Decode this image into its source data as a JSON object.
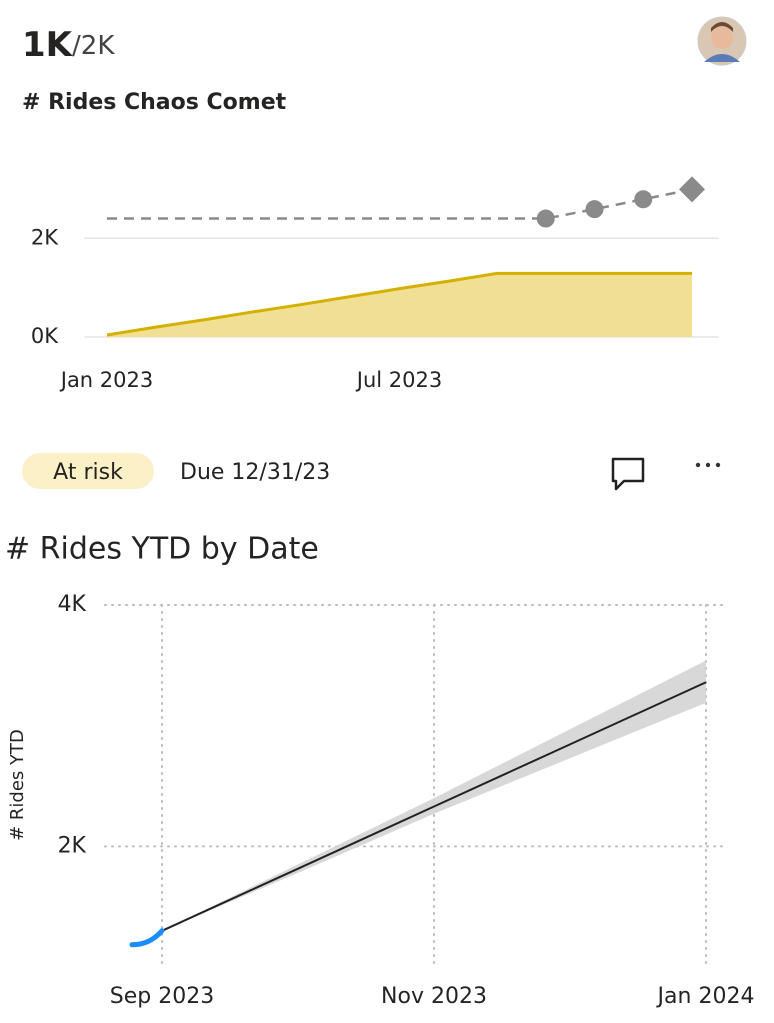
{
  "header": {
    "value": "1K",
    "target": "/2K",
    "title": "# Rides Chaos Comet"
  },
  "status": {
    "label": "At risk",
    "due": "Due 12/31/23"
  },
  "chart_data": [
    {
      "type": "goal",
      "categories": [
        "Jan 2023",
        null,
        null,
        null,
        null,
        null,
        "Jul 2023",
        null,
        null,
        null,
        null,
        null,
        null
      ],
      "series": [
        {
          "color": "#d4b000",
          "fill": "#f1df93",
          "style": "area",
          "values": [
            40,
            200,
            350,
            510,
            660,
            820,
            980,
            1130,
            1290,
            1290,
            1290,
            1290,
            1290
          ]
        },
        {
          "color": "#8a8a8a",
          "style": "dashed",
          "values": [
            2400,
            2400,
            2400,
            2400,
            2400,
            2400,
            2400,
            2400,
            2400,
            2400,
            2590,
            2790,
            2990
          ],
          "markers": [
            null,
            null,
            null,
            null,
            null,
            null,
            null,
            null,
            null,
            "circle",
            "circle",
            "circle",
            "diamond"
          ]
        }
      ],
      "ylim": [
        0,
        3100
      ],
      "yticks": [
        {
          "value": 0,
          "label": "0K"
        },
        {
          "value": 2000,
          "label": "2K"
        }
      ],
      "grid": true
    },
    {
      "type": "forecast",
      "title": "# Rides YTD by Date",
      "ylabel": "# Rides YTD",
      "categories": [
        "Sep 2023",
        null,
        "Nov 2023",
        null,
        "Jan 2024"
      ],
      "series": [
        {
          "color": "#1a8cff",
          "style": "actual",
          "values": [
            1300,
            null,
            null,
            null,
            null
          ]
        },
        {
          "color": "#222222",
          "style": "line",
          "values": [
            1300,
            1815,
            2330,
            2845,
            3360
          ]
        },
        {
          "color": "#d4d4d4",
          "style": "band",
          "upper": [
            1300,
            1850,
            2400,
            2970,
            3540
          ],
          "lower": [
            1300,
            1780,
            2270,
            2730,
            3190
          ]
        }
      ],
      "ylim": [
        1000,
        4000
      ],
      "yticks": [
        {
          "value": 2000,
          "label": "2K"
        },
        {
          "value": 4000,
          "label": "4K"
        }
      ],
      "grid": true
    }
  ]
}
